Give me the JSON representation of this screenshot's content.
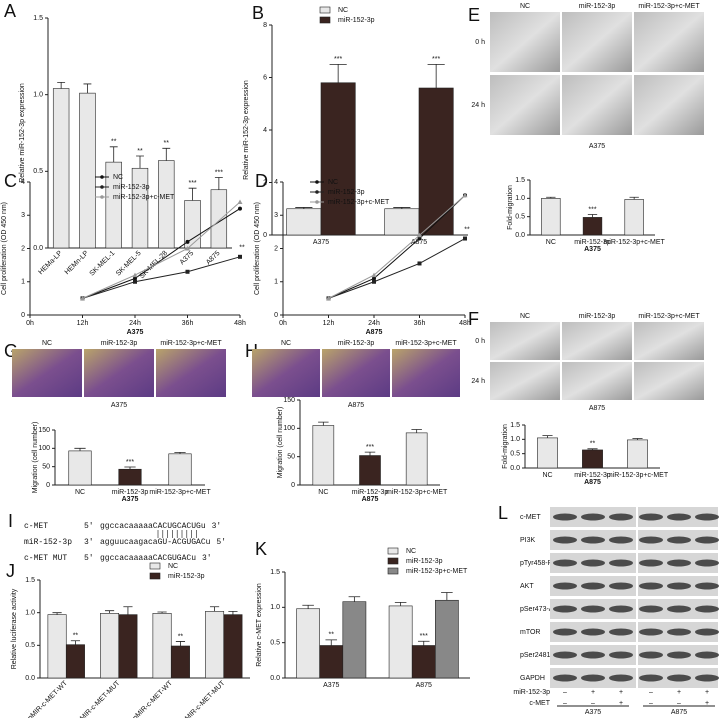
{
  "panel_letters": [
    "A",
    "B",
    "C",
    "D",
    "E",
    "F",
    "G",
    "H",
    "I",
    "J",
    "K",
    "L"
  ],
  "chart_data": [
    {
      "type": "bar",
      "ylabel": "Relative miR-152-3p expression",
      "categories": [
        "HEMa-LP",
        "HEMn-LP",
        "SK-MEL-1",
        "SK-MEL-5",
        "SK-MEL-28",
        "A375",
        "A875"
      ],
      "values": [
        1.04,
        1.01,
        0.56,
        0.52,
        0.57,
        0.31,
        0.38
      ],
      "errors": [
        0.04,
        0.06,
        0.1,
        0.08,
        0.08,
        0.08,
        0.08
      ],
      "annotations": [
        null,
        null,
        "**",
        "**",
        "**",
        "***",
        "***"
      ],
      "color": "#e8e8e8",
      "ylim": [
        0,
        1.5
      ],
      "yticks": [
        {
          "value": 0,
          "label": "0.0"
        },
        {
          "value": 0.5,
          "label": "0.5"
        },
        {
          "value": 1,
          "label": "1.0"
        },
        {
          "value": 1.5,
          "label": "1.5"
        }
      ]
    },
    {
      "type": "bar",
      "ylabel": "Relative miR-152-3p expression",
      "categories": [
        "A375",
        "A875"
      ],
      "series": [
        {
          "name": "NC",
          "color": "#e8e8e8",
          "values": [
            1,
            1
          ],
          "errors": [
            0.05,
            0.05
          ],
          "annotations": [
            null,
            null
          ]
        },
        {
          "name": "miR-152-3p",
          "color": "#3a2420",
          "values": [
            5.8,
            5.6
          ],
          "errors": [
            0.7,
            0.9
          ],
          "annotations": [
            "***",
            "***"
          ]
        }
      ],
      "ylim": [
        0,
        8
      ],
      "yticks": [
        0,
        2,
        4,
        6,
        8
      ]
    },
    {
      "type": "line",
      "ylabel": "Cell proliferation (OD 450 nm)",
      "xlabel": "A375",
      "categories": [
        "0h",
        "12h",
        "24h",
        "36h",
        "48h"
      ],
      "series": [
        {
          "name": "NC",
          "color": "#111111",
          "marker": "circle",
          "values": [
            null,
            0.5,
            1.1,
            2.2,
            3.2
          ],
          "annotations": [
            null,
            null,
            null,
            null,
            null
          ]
        },
        {
          "name": "miR-152-3p",
          "color": "#222222",
          "marker": "square",
          "values": [
            null,
            0.5,
            1.0,
            1.3,
            1.75
          ],
          "annotations": [
            null,
            null,
            null,
            null,
            "**"
          ]
        },
        {
          "name": "miR-152-3p+c-MET",
          "color": "#999999",
          "marker": "triangle",
          "values": [
            null,
            0.5,
            1.2,
            2.0,
            3.4
          ],
          "annotations": [
            null,
            null,
            null,
            null,
            null
          ]
        }
      ],
      "ylim": [
        0,
        4
      ],
      "yticks": [
        0,
        1,
        2,
        3,
        4
      ]
    },
    {
      "type": "line",
      "ylabel": "Cell proliferation (OD 450 nm)",
      "xlabel": "A875",
      "categories": [
        "0h",
        "12h",
        "24h",
        "36h",
        "48h"
      ],
      "series": [
        {
          "name": "NC",
          "color": "#111111",
          "marker": "circle",
          "values": [
            null,
            0.5,
            1.1,
            2.3,
            3.6
          ],
          "annotations": [
            null,
            null,
            null,
            null,
            null
          ]
        },
        {
          "name": "miR-152-3p",
          "color": "#222222",
          "marker": "square",
          "values": [
            null,
            0.5,
            1.0,
            1.55,
            2.3
          ],
          "annotations": [
            null,
            null,
            null,
            null,
            "**"
          ]
        },
        {
          "name": "miR-152-3p+c-MET",
          "color": "#999999",
          "marker": "triangle",
          "values": [
            null,
            0.5,
            1.2,
            2.4,
            3.6
          ],
          "annotations": [
            null,
            null,
            null,
            null,
            null
          ]
        }
      ],
      "ylim": [
        0,
        4
      ],
      "yticks": [
        0,
        1,
        2,
        3,
        4
      ]
    },
    {
      "type": "bar",
      "ylabel": "Fold-migration",
      "xlabel": "A375",
      "categories": [
        "NC",
        "miR-152-3p",
        "miR-152-3p+c-MET"
      ],
      "values": [
        1.0,
        0.48,
        0.97
      ],
      "errors": [
        0.03,
        0.08,
        0.06
      ],
      "annotations": [
        null,
        "***",
        null
      ],
      "colors": [
        "#e8e8e8",
        "#3a2420",
        "#e8e8e8"
      ],
      "ylim": [
        0,
        1.5
      ],
      "yticks": [
        {
          "value": 0,
          "label": "0.0"
        },
        {
          "value": 0.5,
          "label": "0.5"
        },
        {
          "value": 1,
          "label": "1.0"
        },
        {
          "value": 1.5,
          "label": "1.5"
        }
      ]
    },
    {
      "type": "bar",
      "ylabel": "Fold-migration",
      "xlabel": "A875",
      "categories": [
        "NC",
        "miR-152-3p",
        "miR-152-3p+c-MET"
      ],
      "values": [
        1.05,
        0.63,
        0.98
      ],
      "errors": [
        0.08,
        0.04,
        0.05
      ],
      "annotations": [
        null,
        "**",
        null
      ],
      "colors": [
        "#e8e8e8",
        "#3a2420",
        "#e8e8e8"
      ],
      "ylim": [
        0,
        1.5
      ],
      "yticks": [
        {
          "value": 0,
          "label": "0.0"
        },
        {
          "value": 0.5,
          "label": "0.5"
        },
        {
          "value": 1,
          "label": "1.0"
        },
        {
          "value": 1.5,
          "label": "1.5"
        }
      ]
    },
    {
      "type": "bar",
      "ylabel": "Migration (cell number)",
      "xlabel": "A375",
      "categories": [
        "NC",
        "miR-152-3p",
        "miR-152-3p+c-MET"
      ],
      "values": [
        93,
        43,
        85
      ],
      "errors": [
        7,
        6,
        4
      ],
      "annotations": [
        null,
        "***",
        null
      ],
      "colors": [
        "#e8e8e8",
        "#3a2420",
        "#e8e8e8"
      ],
      "ylim": [
        0,
        150
      ],
      "yticks": [
        0,
        50,
        100,
        150
      ]
    },
    {
      "type": "bar",
      "ylabel": "Migration (cell number)",
      "xlabel": "A875",
      "categories": [
        "NC",
        "miR-152-3p",
        "miR-152-3p+c-MET"
      ],
      "values": [
        105,
        52,
        92
      ],
      "errors": [
        6,
        6,
        6
      ],
      "annotations": [
        null,
        "***",
        null
      ],
      "colors": [
        "#e8e8e8",
        "#3a2420",
        "#e8e8e8"
      ],
      "ylim": [
        0,
        150
      ],
      "yticks": [
        0,
        50,
        100,
        150
      ]
    },
    {
      "type": "bar",
      "ylabel": "Relative luciferase activity",
      "categories": [
        "pMIR-c-MET-WT",
        "pMIR-c-MET-MUT",
        "pMIR-c-MET-WT",
        "pMIR-c-MET-MUT"
      ],
      "group_labels": [
        "A375",
        "A875"
      ],
      "series": [
        {
          "name": "NC",
          "color": "#e8e8e8",
          "values": [
            0.97,
            0.99,
            0.99,
            1.02
          ],
          "errors": [
            0.03,
            0.04,
            0.02,
            0.07
          ],
          "annotations": [
            null,
            null,
            null,
            null
          ]
        },
        {
          "name": "miR-152-3p",
          "color": "#3a2420",
          "values": [
            0.51,
            0.97,
            0.49,
            0.97
          ],
          "errors": [
            0.06,
            0.12,
            0.07,
            0.05
          ],
          "annotations": [
            "**",
            null,
            "**",
            null
          ]
        }
      ],
      "ylim": [
        0,
        1.5
      ],
      "yticks": [
        {
          "value": 0,
          "label": "0.0"
        },
        {
          "value": 0.5,
          "label": "0.5"
        },
        {
          "value": 1,
          "label": "1.0"
        },
        {
          "value": 1.5,
          "label": "1.5"
        }
      ]
    },
    {
      "type": "bar",
      "ylabel": "Relative c-MET expression",
      "categories": [
        "A375",
        "A875"
      ],
      "series": [
        {
          "name": "NC",
          "color": "#e8e8e8",
          "values": [
            0.98,
            1.02
          ],
          "errors": [
            0.05,
            0.05
          ],
          "annotations": [
            null,
            null
          ]
        },
        {
          "name": "miR-152-3p",
          "color": "#3a2420",
          "values": [
            0.46,
            0.46
          ],
          "errors": [
            0.08,
            0.06
          ],
          "annotations": [
            "**",
            "***"
          ]
        },
        {
          "name": "miR-152-3p+c-MET",
          "color": "#888888",
          "values": [
            1.08,
            1.1
          ],
          "errors": [
            0.07,
            0.11
          ],
          "annotations": [
            null,
            null
          ]
        }
      ],
      "ylim": [
        0,
        1.5
      ],
      "yticks": [
        {
          "value": 0,
          "label": "0.0"
        },
        {
          "value": 0.5,
          "label": "0.5"
        },
        {
          "value": 1,
          "label": "1.0"
        },
        {
          "value": 1.5,
          "label": "1.5"
        }
      ]
    }
  ],
  "images": [
    {
      "columns": [
        "NC",
        "miR-152-3p",
        "miR-152-3p+c-MET"
      ],
      "rows": [
        "0 h",
        "24 h"
      ],
      "caption": "A375"
    },
    {
      "columns": [
        "NC",
        "miR-152-3p",
        "miR-152-3p+c-MET"
      ],
      "rows": [
        "0 h",
        "24 h"
      ],
      "caption": "A875"
    },
    {
      "columns": [
        "NC",
        "miR-152-3p",
        "miR-152-3p+c-MET"
      ],
      "caption": "A375"
    },
    {
      "columns": [
        "NC",
        "miR-152-3p",
        "miR-152-3p+c-MET"
      ],
      "caption": "A875"
    }
  ],
  "sequences": [
    {
      "name": "c-MET",
      "left": "5'",
      "seq": [
        "ggccacaaaaaCACUGCACUGu"
      ],
      "right": "3'"
    },
    {
      "name": "miR-152-3p",
      "left": "3'",
      "seq": [
        "agguucaagacaGU-ACGUGACu"
      ],
      "right": "5'"
    },
    {
      "name": "c-MET MUT",
      "left": "5'",
      "seq": [
        "ggccacaaaaaC",
        "ACGUGAC",
        "u"
      ],
      "right": "3'"
    }
  ],
  "western": {
    "proteins": [
      "c-MET",
      "PI3K",
      "pTyr458-PI3K",
      "AKT",
      "pSer473-Akt",
      "mTOR",
      "pSer2481-mTOR",
      "GAPDH"
    ],
    "treatments": [
      {
        "name": "miR-152-3p",
        "signs": [
          "–",
          "+",
          "+",
          "–",
          "+",
          "+"
        ]
      },
      {
        "name": "c-MET",
        "signs": [
          "–",
          "–",
          "+",
          "–",
          "–",
          "+"
        ]
      }
    ],
    "cells": [
      "A375",
      "A875"
    ]
  }
}
